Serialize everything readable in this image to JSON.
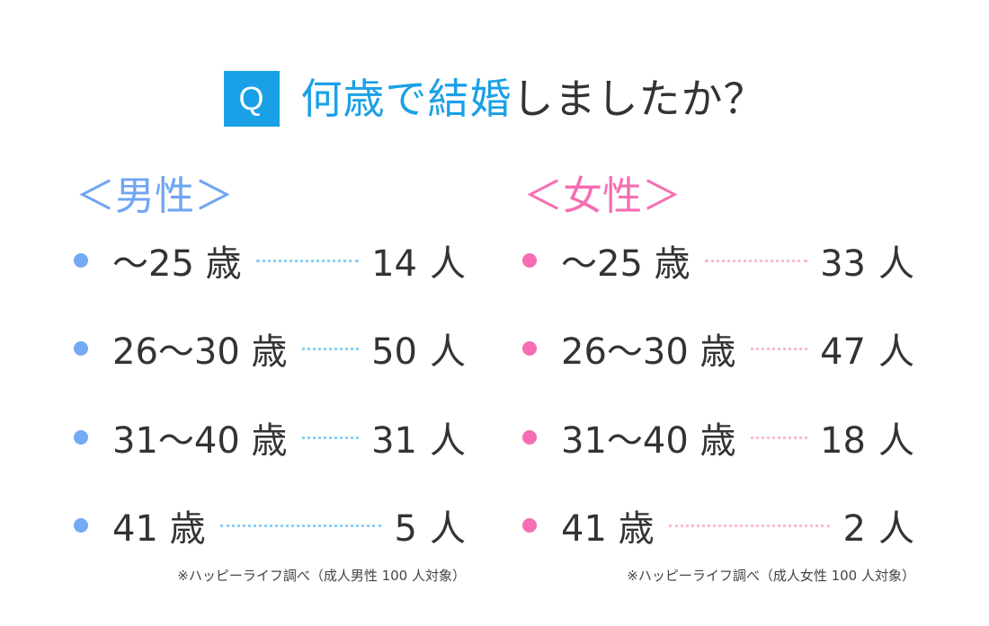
{
  "question": {
    "badge": "Q",
    "title_accent": "何歳で結婚",
    "title_rest": "しましたか？"
  },
  "groups": {
    "male": {
      "heading": "＜男性＞",
      "note": "※ハッピーライフ調べ（成人男性 100 人対象）",
      "color": "#6fa5f2",
      "leader_color": "#8ccff2"
    },
    "female": {
      "heading": "＜女性＞",
      "note": "※ハッピーライフ調べ（成人女性 100 人対象）",
      "color": "#f56eb1",
      "leader_color": "#f9b9d7"
    }
  },
  "unit": "人",
  "chart_data": {
    "type": "table",
    "categories": [
      "～25 歳",
      "26～30 歳",
      "31～40 歳",
      "41 歳"
    ],
    "series": [
      {
        "name": "男性",
        "values": [
          14,
          50,
          31,
          5
        ]
      },
      {
        "name": "女性",
        "values": [
          33,
          47,
          18,
          2
        ]
      }
    ]
  }
}
